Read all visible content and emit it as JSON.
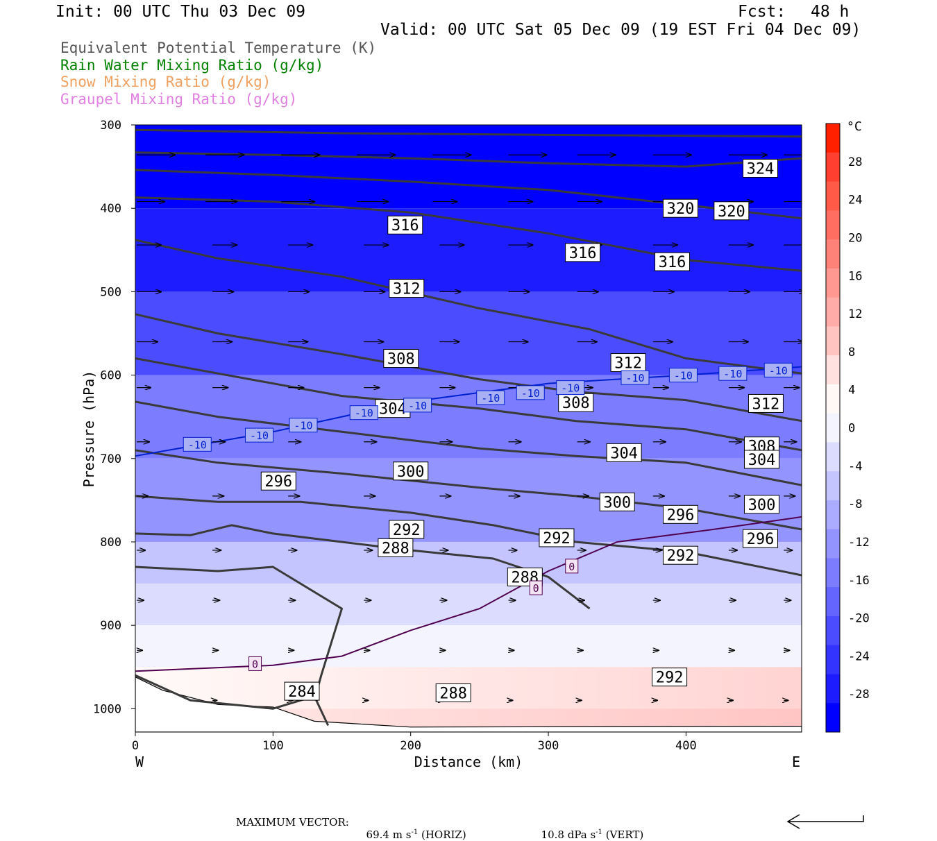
{
  "header": {
    "init": "Init: 00 UTC Thu 03 Dec 09",
    "fcst_label": "Fcst:",
    "fcst_value": "48 h",
    "valid": "Valid: 00 UTC Sat 05 Dec 09 (19 EST Fri 04 Dec 09)"
  },
  "legend": [
    {
      "label": "Equivalent Potential Temperature (K)",
      "color": "#555555"
    },
    {
      "label": "Rain Water Mixing Ratio (g/kg)",
      "color": "#008000"
    },
    {
      "label": "Snow Mixing Ratio (g/kg)",
      "color": "#f0a060"
    },
    {
      "label": "Graupel Mixing Ratio (g/kg)",
      "color": "#e080e0"
    }
  ],
  "footer": {
    "max_vector_label": "MAXIMUM VECTOR:",
    "horiz_value": "69.4",
    "horiz_unit": "m s",
    "horiz_tag": "(HORIZ)",
    "vert_value": "10.8",
    "vert_unit": "dPa s",
    "vert_tag": "(VERT)",
    "exponent": "-1"
  },
  "chart_data": {
    "type": "heatmap",
    "title": "",
    "xlabel": "Distance (km)",
    "ylabel": "Pressure (hPa)",
    "xlim": [
      0,
      484
    ],
    "ylim": [
      1028,
      300
    ],
    "x_ticks": [
      0,
      100,
      200,
      300,
      400
    ],
    "y_ticks": [
      300,
      400,
      500,
      600,
      700,
      800,
      900,
      1000
    ],
    "x_direction_labels": [
      "W",
      "E"
    ],
    "colorbar": {
      "unit": "°C",
      "levels": [
        28,
        24,
        20,
        16,
        12,
        8,
        4,
        0,
        -4,
        -8,
        -12,
        -16,
        -20,
        -24,
        -28
      ],
      "colors_top_to_bottom": [
        "#ff2000",
        "#ff4030",
        "#ff5a48",
        "#ff6e60",
        "#ff8278",
        "#ff9890",
        "#ffaca8",
        "#ffc4c0",
        "#ffe2e0",
        "#fff8f6",
        "#f4f4ff",
        "#dcdcff",
        "#c4c4ff",
        "#ababff",
        "#9494ff",
        "#7c7cff",
        "#6464ff",
        "#4c4cff",
        "#3434ff",
        "#1c1cff",
        "#0000ff"
      ]
    },
    "background_temperature_bands": [
      {
        "p": 300,
        "t": -40
      },
      {
        "p": 400,
        "t": -32
      },
      {
        "p": 500,
        "t": -24
      },
      {
        "p": 600,
        "t": -17
      },
      {
        "p": 700,
        "t": -12
      },
      {
        "p": 800,
        "t": -6
      },
      {
        "p": 850,
        "t": -2
      },
      {
        "p": 900,
        "t": 0
      },
      {
        "p": 950,
        "t": 3
      },
      {
        "p": 1000,
        "t": 6
      }
    ],
    "theta_e_contours": [
      {
        "level": 324,
        "points": [
          [
            0,
            306
          ],
          [
            150,
            310
          ],
          [
            300,
            312
          ],
          [
            484,
            314
          ]
        ]
      },
      {
        "level": "",
        "points": [
          [
            0,
            333
          ],
          [
            100,
            336
          ],
          [
            200,
            340
          ],
          [
            300,
            346
          ],
          [
            400,
            350
          ],
          [
            484,
            340
          ]
        ]
      },
      {
        "level": 320,
        "points": [
          [
            0,
            354
          ],
          [
            100,
            360
          ],
          [
            200,
            368
          ],
          [
            300,
            378
          ],
          [
            400,
            396
          ],
          [
            484,
            412
          ]
        ]
      },
      {
        "level": 316,
        "points": [
          [
            0,
            387
          ],
          [
            100,
            392
          ],
          [
            200,
            405
          ],
          [
            300,
            430
          ],
          [
            400,
            462
          ],
          [
            484,
            475
          ]
        ]
      },
      {
        "level": 316,
        "points": [
          [
            0,
            438
          ],
          [
            60,
            460
          ],
          [
            150,
            482
          ],
          [
            250,
            520
          ],
          [
            330,
            545
          ],
          [
            400,
            580
          ],
          [
            484,
            598
          ]
        ]
      },
      {
        "level": 312,
        "points": [
          [
            0,
            527
          ],
          [
            60,
            550
          ],
          [
            150,
            575
          ],
          [
            250,
            605
          ],
          [
            320,
            620
          ],
          [
            400,
            630
          ],
          [
            484,
            655
          ]
        ]
      },
      {
        "level": 308,
        "points": [
          [
            0,
            580
          ],
          [
            60,
            598
          ],
          [
            150,
            625
          ],
          [
            250,
            640
          ],
          [
            320,
            655
          ],
          [
            400,
            665
          ],
          [
            484,
            690
          ]
        ]
      },
      {
        "level": 304,
        "points": [
          [
            0,
            632
          ],
          [
            60,
            650
          ],
          [
            150,
            668
          ],
          [
            250,
            688
          ],
          [
            320,
            697
          ],
          [
            400,
            705
          ],
          [
            484,
            732
          ]
        ]
      },
      {
        "level": 300,
        "points": [
          [
            0,
            690
          ],
          [
            60,
            705
          ],
          [
            150,
            718
          ],
          [
            250,
            735
          ],
          [
            320,
            745
          ],
          [
            400,
            760
          ],
          [
            484,
            785
          ]
        ]
      },
      {
        "level": 296,
        "points": [
          [
            0,
            745
          ],
          [
            60,
            752
          ],
          [
            120,
            752
          ],
          [
            200,
            765
          ],
          [
            260,
            780
          ],
          [
            320,
            800
          ],
          [
            400,
            812
          ],
          [
            484,
            840
          ]
        ]
      },
      {
        "level": 292,
        "points": [
          [
            0,
            790
          ],
          [
            40,
            792
          ],
          [
            70,
            780
          ],
          [
            100,
            790
          ],
          [
            150,
            800
          ],
          [
            200,
            810
          ],
          [
            260,
            820
          ],
          [
            300,
            842
          ],
          [
            330,
            880
          ]
        ]
      },
      {
        "level": 288,
        "points": [
          [
            0,
            830
          ],
          [
            60,
            835
          ],
          [
            100,
            830
          ],
          [
            150,
            880
          ],
          [
            135,
            960
          ],
          [
            130,
            990
          ]
        ]
      },
      {
        "level": 284,
        "points": [
          [
            0,
            960
          ],
          [
            40,
            990
          ],
          [
            100,
            1000
          ],
          [
            130,
            985
          ],
          [
            140,
            1020
          ]
        ]
      }
    ],
    "temperature_contours": [
      {
        "level": -10,
        "color": "#0020d0",
        "points": [
          [
            0,
            697
          ],
          [
            100,
            668
          ],
          [
            200,
            632
          ],
          [
            300,
            610
          ],
          [
            400,
            600
          ],
          [
            484,
            590
          ]
        ]
      },
      {
        "level": 0,
        "color": "#500050",
        "points": [
          [
            0,
            955
          ],
          [
            100,
            948
          ],
          [
            150,
            937
          ],
          [
            200,
            906
          ],
          [
            250,
            880
          ],
          [
            300,
            835
          ],
          [
            350,
            800
          ],
          [
            420,
            785
          ],
          [
            484,
            770
          ]
        ]
      }
    ],
    "contour_labels": [
      {
        "text": "324",
        "x": 454,
        "p": 352
      },
      {
        "text": "320",
        "x": 396,
        "p": 400
      },
      {
        "text": "320",
        "x": 433,
        "p": 403
      },
      {
        "text": "316",
        "x": 196,
        "p": 420
      },
      {
        "text": "316",
        "x": 325,
        "p": 453
      },
      {
        "text": "316",
        "x": 390,
        "p": 464
      },
      {
        "text": "312",
        "x": 197,
        "p": 496
      },
      {
        "text": "312",
        "x": 358,
        "p": 585
      },
      {
        "text": "312",
        "x": 458,
        "p": 634
      },
      {
        "text": "308",
        "x": 193,
        "p": 580
      },
      {
        "text": "308",
        "x": 320,
        "p": 633
      },
      {
        "text": "308",
        "x": 455,
        "p": 685
      },
      {
        "text": "304",
        "x": 187,
        "p": 640
      },
      {
        "text": "304",
        "x": 355,
        "p": 693
      },
      {
        "text": "304",
        "x": 455,
        "p": 701
      },
      {
        "text": "300",
        "x": 200,
        "p": 715
      },
      {
        "text": "300",
        "x": 350,
        "p": 752
      },
      {
        "text": "300",
        "x": 455,
        "p": 755
      },
      {
        "text": "296",
        "x": 104,
        "p": 727
      },
      {
        "text": "296",
        "x": 396,
        "p": 767
      },
      {
        "text": "296",
        "x": 454,
        "p": 796
      },
      {
        "text": "292",
        "x": 197,
        "p": 785
      },
      {
        "text": "292",
        "x": 306,
        "p": 795
      },
      {
        "text": "292",
        "x": 396,
        "p": 816
      },
      {
        "text": "292",
        "x": 388,
        "p": 962
      },
      {
        "text": "288",
        "x": 189,
        "p": 807
      },
      {
        "text": "288",
        "x": 283,
        "p": 842
      },
      {
        "text": "288",
        "x": 231,
        "p": 981
      },
      {
        "text": "284",
        "x": 121,
        "p": 979
      }
    ],
    "temperature_labels": [
      {
        "text": "-10",
        "x": 45,
        "p": 683
      },
      {
        "text": "-10",
        "x": 90,
        "p": 672
      },
      {
        "text": "-10",
        "x": 122,
        "p": 660
      },
      {
        "text": "-10",
        "x": 166,
        "p": 645
      },
      {
        "text": "-10",
        "x": 205,
        "p": 636
      },
      {
        "text": "-10",
        "x": 258,
        "p": 627
      },
      {
        "text": "-10",
        "x": 287,
        "p": 621
      },
      {
        "text": "-10",
        "x": 316,
        "p": 615
      },
      {
        "text": "-10",
        "x": 363,
        "p": 603
      },
      {
        "text": "-10",
        "x": 398,
        "p": 600
      },
      {
        "text": "-10",
        "x": 434,
        "p": 598
      },
      {
        "text": "-10",
        "x": 467,
        "p": 594
      },
      {
        "text": "0",
        "x": 87,
        "p": 946
      },
      {
        "text": "0",
        "x": 317,
        "p": 829
      },
      {
        "text": "0",
        "x": 291,
        "p": 855
      }
    ],
    "wind_vector_rows": [
      {
        "p": 336,
        "xs": [
          0,
          50,
          105,
          160,
          215,
          270,
          320,
          375,
          430,
          470
        ],
        "len": [
          55,
          55,
          55,
          55,
          55,
          55,
          55,
          55,
          55,
          55
        ]
      },
      {
        "p": 392,
        "xs": [
          0,
          50,
          105,
          160,
          215,
          270,
          320,
          375,
          430,
          470
        ],
        "len": [
          40,
          45,
          48,
          45,
          35,
          35,
          35,
          35,
          35,
          35
        ]
      },
      {
        "p": 444,
        "xs": [
          0,
          55,
          110,
          165,
          220,
          270,
          320,
          375,
          430,
          470
        ],
        "len": [
          35,
          35,
          35,
          35,
          35,
          35,
          35,
          35,
          35,
          35
        ]
      },
      {
        "p": 500,
        "xs": [
          0,
          55,
          110,
          165,
          220,
          270,
          320,
          375,
          430,
          470
        ],
        "len": [
          35,
          30,
          30,
          30,
          30,
          30,
          30,
          30,
          30,
          30
        ]
      },
      {
        "p": 560,
        "xs": [
          0,
          55,
          110,
          165,
          220,
          270,
          320,
          375,
          430,
          470
        ],
        "len": [
          30,
          28,
          28,
          28,
          28,
          28,
          28,
          28,
          28,
          28
        ]
      },
      {
        "p": 615,
        "xs": [
          0,
          55,
          110,
          165,
          220,
          270,
          320,
          375,
          430,
          470
        ],
        "len": [
          20,
          22,
          22,
          22,
          22,
          22,
          22,
          22,
          22,
          22
        ]
      },
      {
        "p": 680,
        "xs": [
          0,
          55,
          110,
          165,
          220,
          270,
          320,
          375,
          430,
          470
        ],
        "len": [
          18,
          18,
          18,
          18,
          18,
          18,
          18,
          18,
          18,
          18
        ]
      },
      {
        "p": 745,
        "xs": [
          0,
          55,
          110,
          165,
          220,
          270,
          320,
          375,
          430,
          470
        ],
        "len": [
          16,
          16,
          16,
          16,
          16,
          16,
          16,
          16,
          16,
          16
        ]
      },
      {
        "p": 810,
        "xs": [
          0,
          55,
          110,
          165,
          220,
          270,
          320,
          375,
          430,
          470
        ],
        "len": [
          12,
          12,
          12,
          12,
          12,
          12,
          12,
          12,
          12,
          12
        ]
      },
      {
        "p": 870,
        "xs": [
          0,
          55,
          110,
          165,
          220,
          270,
          320,
          375,
          430,
          470
        ],
        "len": [
          10,
          10,
          10,
          10,
          10,
          10,
          10,
          10,
          10,
          10
        ]
      },
      {
        "p": 930,
        "xs": [
          0,
          55,
          110,
          165,
          220,
          270,
          320,
          375,
          430,
          470
        ],
        "len": [
          8,
          8,
          8,
          8,
          8,
          8,
          8,
          8,
          8,
          8
        ]
      },
      {
        "p": 990,
        "xs": [
          55,
          110,
          165,
          220,
          270,
          320,
          375,
          430,
          470
        ],
        "len": [
          6,
          6,
          6,
          6,
          6,
          6,
          6,
          6,
          6
        ]
      }
    ],
    "grid": false
  }
}
